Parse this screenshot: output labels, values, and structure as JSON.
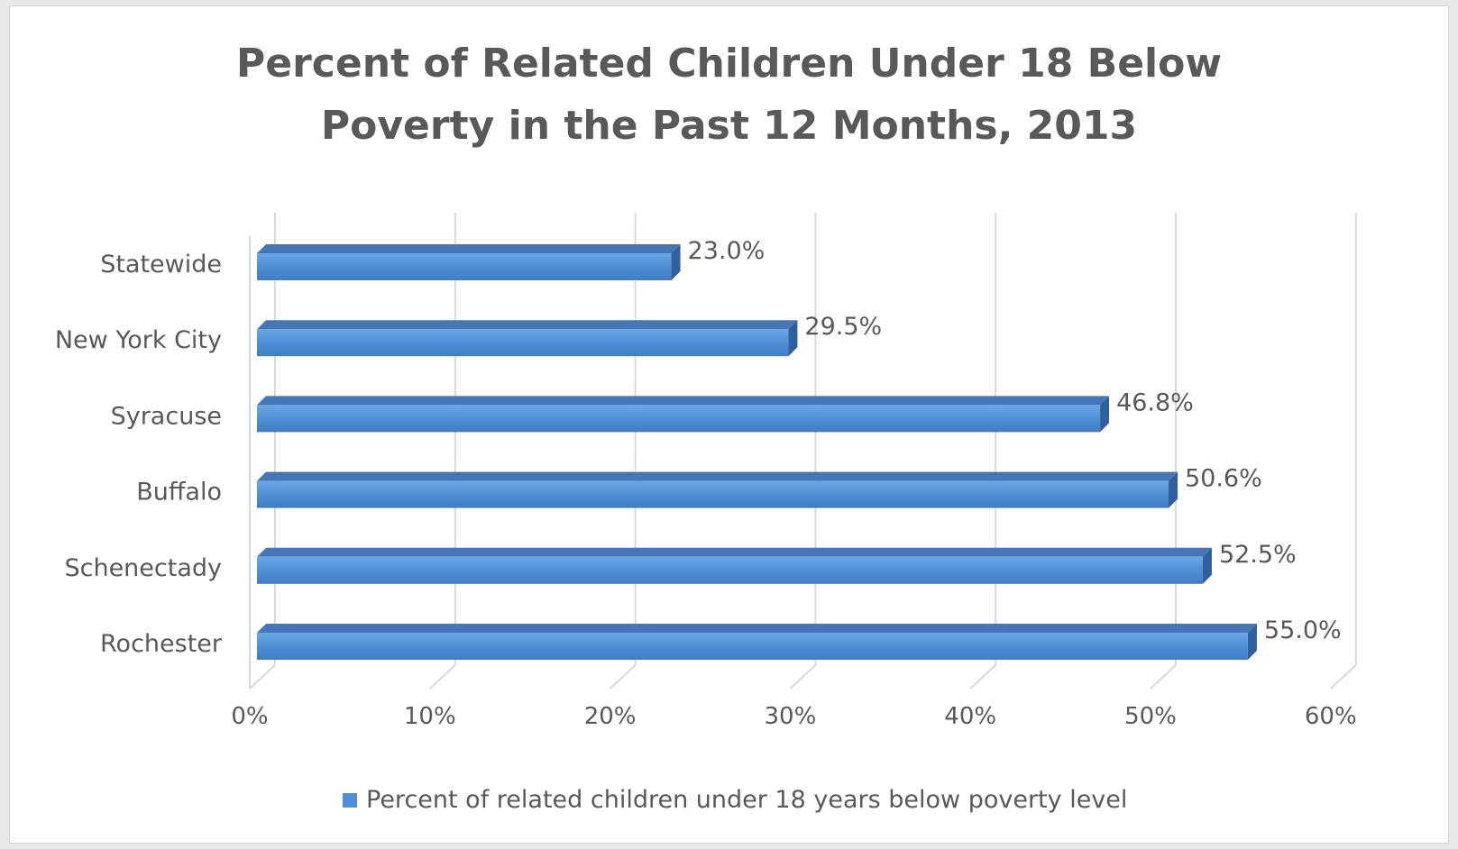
{
  "chart_data": {
    "type": "bar",
    "orientation": "horizontal",
    "title_lines": [
      "Percent of Related Children Under 18 Below",
      "Poverty in the Past 12 Months, 2013"
    ],
    "categories": [
      "Statewide",
      "New York City",
      "Syracuse",
      "Buffalo",
      "Schenectady",
      "Rochester"
    ],
    "series": [
      {
        "name": "Percent of related children under 18 years below poverty level",
        "values": [
          23.0,
          29.5,
          46.8,
          50.6,
          52.5,
          55.0
        ],
        "labels": [
          "23.0%",
          "29.5%",
          "46.8%",
          "50.6%",
          "52.5%",
          "55.0%"
        ],
        "color": "#4f8fd6"
      }
    ],
    "xlim": [
      0,
      60
    ],
    "x_ticks": [
      0,
      10,
      20,
      30,
      40,
      50,
      60
    ],
    "x_tick_labels": [
      "0%",
      "10%",
      "20%",
      "30%",
      "40%",
      "50%",
      "60%"
    ],
    "grid": true,
    "style": "3d",
    "legend_position": "bottom"
  }
}
